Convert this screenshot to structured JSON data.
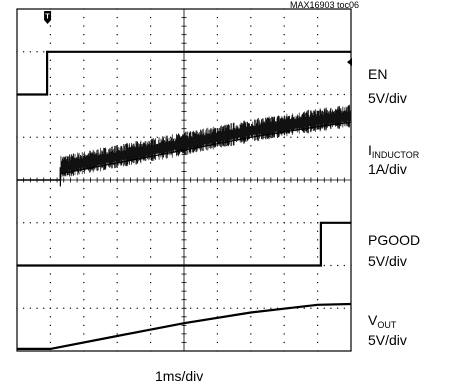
{
  "figure_id": "MAX16903 toc06",
  "chart_data": {
    "type": "line",
    "title": "",
    "xlabel": "1ms/div",
    "time_per_div_ms": 1,
    "divisions": {
      "x": 10,
      "y": 8
    },
    "grid": true,
    "trigger_marker": "T",
    "channels": [
      {
        "name": "EN",
        "scale": "5V/div",
        "label_main": "EN",
        "label_sub": "",
        "points_div": [
          [
            0.0,
            6.0
          ],
          [
            0.9,
            6.0
          ],
          [
            0.9,
            7.0
          ],
          [
            10.0,
            7.0
          ]
        ]
      },
      {
        "name": "IINDUCTOR",
        "scale": "1A/div",
        "label_main": "I",
        "label_sub": "INDUCTOR",
        "noise_start_div": 1.3,
        "noise_amp_div": 0.55,
        "points_div": [
          [
            0.0,
            4.0
          ],
          [
            1.3,
            4.0
          ],
          [
            1.3,
            4.3
          ],
          [
            3.0,
            4.55
          ],
          [
            5.0,
            4.85
          ],
          [
            7.0,
            5.15
          ],
          [
            9.0,
            5.4
          ],
          [
            10.0,
            5.5
          ]
        ]
      },
      {
        "name": "PGOOD",
        "scale": "5V/div",
        "label_main": "PGOOD",
        "label_sub": "",
        "points_div": [
          [
            0.0,
            2.0
          ],
          [
            9.1,
            2.0
          ],
          [
            9.1,
            3.0
          ],
          [
            10.0,
            3.0
          ]
        ]
      },
      {
        "name": "VOUT",
        "scale": "5V/div",
        "label_main": "V",
        "label_sub": "OUT",
        "points_div": [
          [
            0.0,
            0.05
          ],
          [
            1.0,
            0.05
          ],
          [
            3.0,
            0.35
          ],
          [
            5.0,
            0.65
          ],
          [
            7.0,
            0.9
          ],
          [
            9.0,
            1.08
          ],
          [
            10.0,
            1.1
          ]
        ]
      }
    ]
  }
}
